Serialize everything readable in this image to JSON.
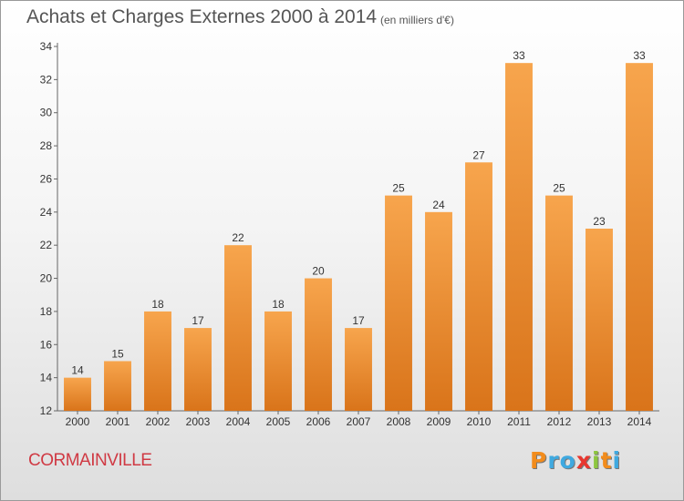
{
  "header": {
    "title": "Achats et Charges Externes 2000 à 2014",
    "subtitle": "(en milliers d'€)"
  },
  "footer": {
    "commune": "CORMAINVILLE",
    "brand": "Proxiti",
    "brand_colors": [
      "#f28c1c",
      "#3fa9e0",
      "#3fa9e0",
      "#e8372f",
      "#8dc63f",
      "#f28c1c",
      "#3fa9e0"
    ]
  },
  "chart_data": {
    "type": "bar",
    "title": "Achats et Charges Externes 2000 à 2014",
    "subtitle": "(en milliers d'€)",
    "categories": [
      "2000",
      "2001",
      "2002",
      "2003",
      "2004",
      "2005",
      "2006",
      "2007",
      "2008",
      "2009",
      "2010",
      "2011",
      "2012",
      "2013",
      "2014"
    ],
    "values": [
      14,
      15,
      18,
      17,
      22,
      18,
      20,
      17,
      25,
      24,
      27,
      33,
      25,
      23,
      33
    ],
    "ylim": [
      12,
      34
    ],
    "yticks": [
      12,
      14,
      16,
      18,
      20,
      22,
      24,
      26,
      28,
      30,
      32,
      34
    ],
    "xlabel": "",
    "ylabel": "",
    "grid": false,
    "bar_color_top": "#f7a54d",
    "bar_color_bottom": "#d9741a",
    "axis_color": "#666666"
  }
}
